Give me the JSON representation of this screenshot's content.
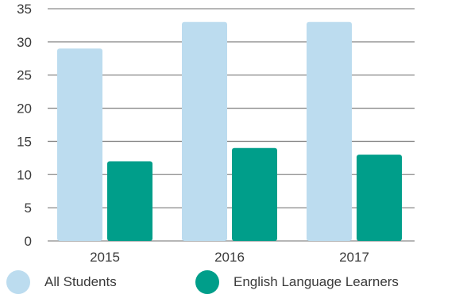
{
  "chart_data": {
    "type": "bar",
    "title": "",
    "xlabel": "",
    "ylabel": "",
    "categories": [
      "2015",
      "2016",
      "2017"
    ],
    "series": [
      {
        "name": "All Students",
        "values": [
          29,
          33,
          33
        ],
        "color": "#bcdcef"
      },
      {
        "name": "English Language Learners",
        "values": [
          12,
          14,
          13
        ],
        "color": "#009e8a"
      }
    ],
    "y_ticks": [
      "0",
      "5",
      "10",
      "15",
      "20",
      "25",
      "30",
      "35"
    ],
    "ylim": [
      0,
      35
    ],
    "grid": true,
    "legend_placement": "bottom"
  }
}
